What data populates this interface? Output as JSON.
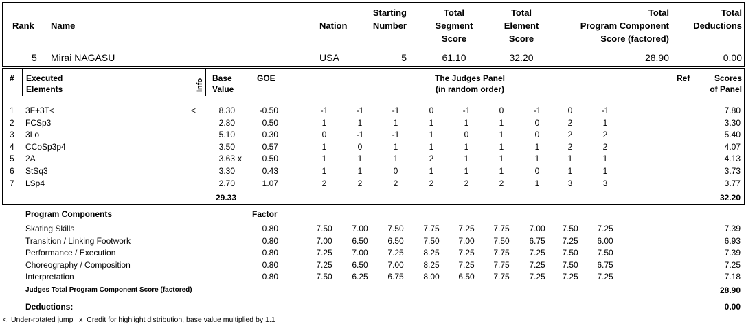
{
  "summary": {
    "headers": {
      "rank": "Rank",
      "name": "Name",
      "nation": "Nation",
      "starting_number": [
        "Starting",
        "Number"
      ],
      "tss": [
        "Total",
        "Segment",
        "Score"
      ],
      "tes": [
        "Total",
        "Element",
        "Score"
      ],
      "pcs": [
        "Total",
        "Program  Component",
        "Score (factored)"
      ],
      "ded": [
        "Total",
        "Deductions"
      ]
    },
    "row": {
      "rank": "5",
      "name": "Mirai NAGASU",
      "nation": "USA",
      "starting_number": "5",
      "tss": "61.10",
      "tes": "32.20",
      "pcs": "28.90",
      "ded": "0.00"
    }
  },
  "elements_header": {
    "num": "#",
    "executed": [
      "Executed",
      "Elements"
    ],
    "info": "Info",
    "base": [
      "Base",
      "Value"
    ],
    "goe": "GOE",
    "panel": [
      "The Judges Panel",
      "(in random order)"
    ],
    "ref": "Ref",
    "scores": [
      "Scores",
      "of Panel"
    ]
  },
  "elements": [
    {
      "num": "1",
      "name": "3F+3T<",
      "info": "<",
      "base": "8.30",
      "x": "",
      "goe": "-0.50",
      "judges": [
        "-1",
        "-1",
        "-1",
        "0",
        "-1",
        "0",
        "-1",
        "0",
        "-1"
      ],
      "score": "7.80"
    },
    {
      "num": "2",
      "name": "FCSp3",
      "info": "",
      "base": "2.80",
      "x": "",
      "goe": "0.50",
      "judges": [
        "1",
        "1",
        "1",
        "1",
        "1",
        "1",
        "0",
        "2",
        "1"
      ],
      "score": "3.30"
    },
    {
      "num": "3",
      "name": "3Lo",
      "info": "",
      "base": "5.10",
      "x": "",
      "goe": "0.30",
      "judges": [
        "0",
        "-1",
        "-1",
        "1",
        "0",
        "1",
        "0",
        "2",
        "2"
      ],
      "score": "5.40"
    },
    {
      "num": "4",
      "name": "CCoSp3p4",
      "info": "",
      "base": "3.50",
      "x": "",
      "goe": "0.57",
      "judges": [
        "1",
        "0",
        "1",
        "1",
        "1",
        "1",
        "1",
        "2",
        "2"
      ],
      "score": "4.07"
    },
    {
      "num": "5",
      "name": "2A",
      "info": "",
      "base": "3.63",
      "x": "x",
      "goe": "0.50",
      "judges": [
        "1",
        "1",
        "1",
        "2",
        "1",
        "1",
        "1",
        "1",
        "1"
      ],
      "score": "4.13"
    },
    {
      "num": "6",
      "name": "StSq3",
      "info": "",
      "base": "3.30",
      "x": "",
      "goe": "0.43",
      "judges": [
        "1",
        "1",
        "0",
        "1",
        "1",
        "1",
        "0",
        "1",
        "1"
      ],
      "score": "3.73"
    },
    {
      "num": "7",
      "name": "LSp4",
      "info": "",
      "base": "2.70",
      "x": "",
      "goe": "1.07",
      "judges": [
        "2",
        "2",
        "2",
        "2",
        "2",
        "2",
        "1",
        "3",
        "3"
      ],
      "score": "3.77"
    }
  ],
  "elements_total": {
    "base": "29.33",
    "score": "32.20"
  },
  "program_components": {
    "heading": "Program Components",
    "factor_heading": "Factor",
    "items": [
      {
        "name": "Skating Skills",
        "factor": "0.80",
        "judges": [
          "7.50",
          "7.00",
          "7.50",
          "7.75",
          "7.25",
          "7.75",
          "7.00",
          "7.50",
          "7.25"
        ],
        "score": "7.39"
      },
      {
        "name": "Transition / Linking Footwork",
        "factor": "0.80",
        "judges": [
          "7.00",
          "6.50",
          "6.50",
          "7.50",
          "7.00",
          "7.50",
          "6.75",
          "7.25",
          "6.00"
        ],
        "score": "6.93"
      },
      {
        "name": "Performance / Execution",
        "factor": "0.80",
        "judges": [
          "7.25",
          "7.00",
          "7.25",
          "8.25",
          "7.25",
          "7.75",
          "7.25",
          "7.50",
          "7.50"
        ],
        "score": "7.39"
      },
      {
        "name": "Choreography / Composition",
        "factor": "0.80",
        "judges": [
          "7.25",
          "6.50",
          "7.00",
          "8.25",
          "7.25",
          "7.75",
          "7.25",
          "7.50",
          "6.75"
        ],
        "score": "7.25"
      },
      {
        "name": "Interpretation",
        "factor": "0.80",
        "judges": [
          "7.50",
          "6.25",
          "6.75",
          "8.00",
          "6.50",
          "7.75",
          "7.25",
          "7.25",
          "7.25"
        ],
        "score": "7.18"
      }
    ],
    "total_label": "Judges Total Program Component Score (factored)",
    "total": "28.90"
  },
  "deductions": {
    "label": "Deductions:",
    "value": "0.00"
  },
  "footnote": "<  Under-rotated jump   x  Credit for highlight distribution, base value multiplied by 1.1"
}
